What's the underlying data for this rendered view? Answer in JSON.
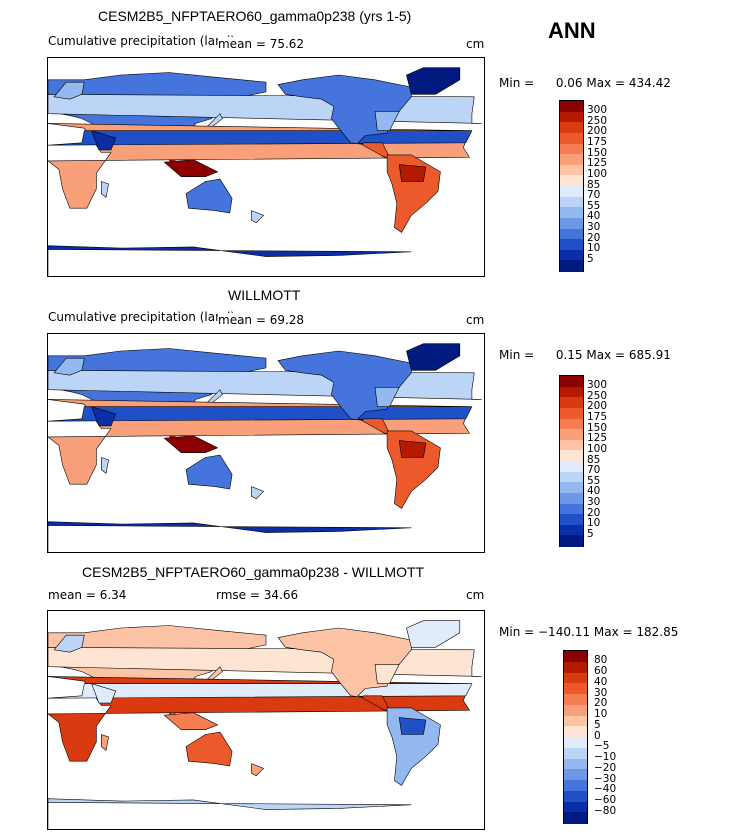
{
  "season": "ANN",
  "panels": [
    {
      "title": "CESM2B5_NFPTAERO60_gamma0p238 (yrs 1-5)",
      "left_label": "Cumulative precipitation (land)",
      "stat_label": "mean = 75.62",
      "units": "cm",
      "min_label": "Min =",
      "min_value": "0.06",
      "max_label": "Max =",
      "max_value": "434.42",
      "map_mode": "abs",
      "colorbar": {
        "labels": [
          "300",
          "250",
          "200",
          "175",
          "150",
          "125",
          "100",
          "85",
          "70",
          "55",
          "40",
          "30",
          "20",
          "10",
          "5"
        ],
        "colors": [
          "#8b0000",
          "#b51a00",
          "#d93a0f",
          "#ec5a2c",
          "#f47d51",
          "#f9a07a",
          "#fcc3a5",
          "#fde4d3",
          "#e0ecfb",
          "#bcd5f7",
          "#94b9f0",
          "#6c98e6",
          "#4575dc",
          "#2050c8",
          "#0a2ea8",
          "#001a80"
        ]
      }
    },
    {
      "title": "WILLMOTT",
      "left_label": "Cumulative precipitation (land)",
      "stat_label": "mean = 69.28",
      "units": "cm",
      "min_label": "Min =",
      "min_value": "0.15",
      "max_label": "Max =",
      "max_value": "685.91",
      "map_mode": "abs",
      "colorbar": {
        "labels": [
          "300",
          "250",
          "200",
          "175",
          "150",
          "125",
          "100",
          "85",
          "70",
          "55",
          "40",
          "30",
          "20",
          "10",
          "5"
        ],
        "colors": [
          "#8b0000",
          "#b51a00",
          "#d93a0f",
          "#ec5a2c",
          "#f47d51",
          "#f9a07a",
          "#fcc3a5",
          "#fde4d3",
          "#e0ecfb",
          "#bcd5f7",
          "#94b9f0",
          "#6c98e6",
          "#4575dc",
          "#2050c8",
          "#0a2ea8",
          "#001a80"
        ]
      }
    },
    {
      "title": "CESM2B5_NFPTAERO60_gamma0p238 - WILLMOTT",
      "left_label": "mean = 6.34",
      "stat_label": "rmse = 34.66",
      "units": "cm",
      "min_label": "Min =",
      "min_value": "−140.11",
      "max_label": "Max =",
      "max_value": "182.85",
      "map_mode": "diff",
      "colorbar": {
        "labels": [
          "80",
          "60",
          "40",
          "30",
          "20",
          "10",
          "5",
          "0",
          "−5",
          "−10",
          "−20",
          "−30",
          "−40",
          "−60",
          "−80"
        ],
        "colors": [
          "#8b0000",
          "#b51a00",
          "#d93a0f",
          "#ec5a2c",
          "#f47d51",
          "#f9a07a",
          "#fcc3a5",
          "#fde4d3",
          "#e0ecfb",
          "#bcd5f7",
          "#94b9f0",
          "#6c98e6",
          "#4575dc",
          "#2050c8",
          "#0a2ea8",
          "#001a80"
        ]
      }
    }
  ]
}
